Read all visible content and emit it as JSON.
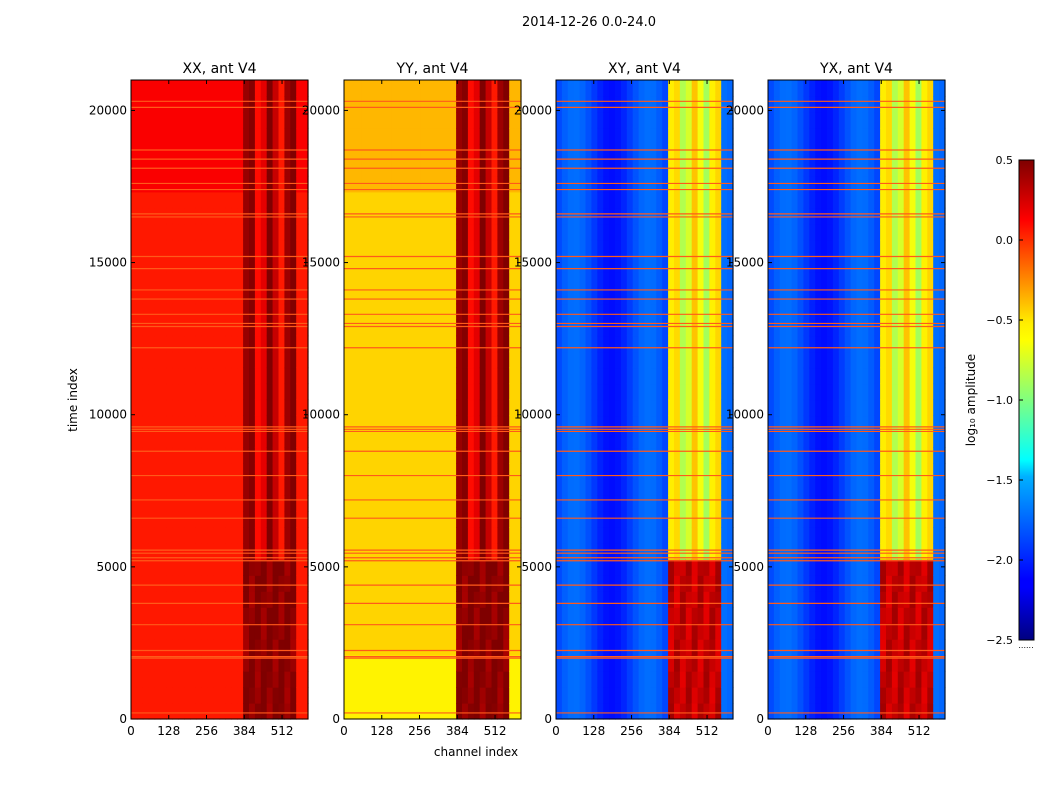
{
  "chart_data": {
    "type": "heatmap",
    "suptitle": "2014-12-26 0.0-24.0",
    "xlabel": "channel index",
    "ylabel": "time index",
    "xlim": [
      0,
      600
    ],
    "ylim": [
      0,
      21000
    ],
    "xticks": [
      0,
      128,
      256,
      384,
      512
    ],
    "yticks": [
      0,
      5000,
      10000,
      15000,
      20000
    ],
    "panels": [
      {
        "title": "XX, ant V4",
        "base": 0.06,
        "band": 0.3,
        "strong": 0.48,
        "striped": false
      },
      {
        "title": "YY, ant V4",
        "base": -0.45,
        "band": 0.3,
        "strong": 0.48,
        "striped": false
      },
      {
        "title": "XY, ant V4",
        "base": -1.9,
        "band": -0.65,
        "strong": 0.3,
        "striped": true
      },
      {
        "title": "YX, ant V4",
        "base": -1.9,
        "band": -0.65,
        "strong": 0.3,
        "striped": true
      }
    ],
    "flag_rows": [
      200,
      2000,
      2050,
      2250,
      3100,
      3800,
      4400,
      5200,
      5300,
      5450,
      5550,
      6600,
      7200,
      8000,
      8800,
      9450,
      9520,
      9600,
      12200,
      12900,
      13000,
      13300,
      13800,
      14100,
      14800,
      15200,
      16500,
      16600,
      17400,
      17600,
      18100,
      18400,
      18700,
      20100,
      20300
    ],
    "colorbar": {
      "label": "log₁₀ amplitude",
      "range": [
        -2.5,
        0.5
      ],
      "ticks": [
        "0.5",
        "0.0",
        "−0.5",
        "−1.0",
        "−1.5",
        "−2.0",
        "−2.5"
      ]
    }
  }
}
